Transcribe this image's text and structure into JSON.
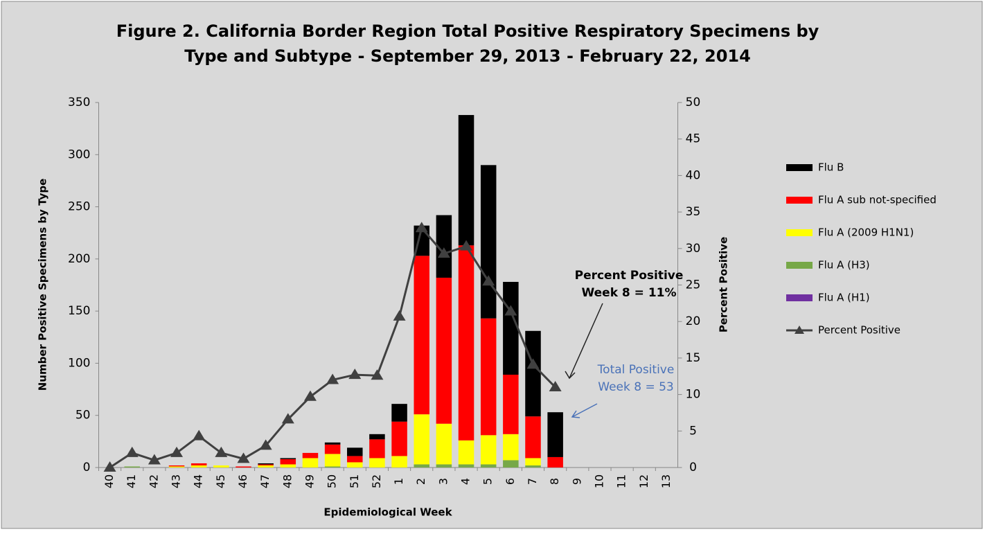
{
  "chart_data": {
    "type": "bar",
    "stacked": true,
    "title": [
      "Figure 2. California Border Region Total Positive Respiratory Specimens by",
      "Type and Subtype - September 29, 2013 - February 22, 2014"
    ],
    "x_label": "Epidemiological Week",
    "y_label": "Number Positive Specimens by Type",
    "y2_label": "Percent Positive",
    "categories": [
      "40",
      "41",
      "42",
      "43",
      "44",
      "45",
      "46",
      "47",
      "48",
      "49",
      "50",
      "51",
      "52",
      "1",
      "2",
      "3",
      "4",
      "5",
      "6",
      "7",
      "8",
      "9",
      "10",
      "11",
      "12",
      "13"
    ],
    "series": [
      {
        "name": "Flu A (H1)",
        "color": "#7030a0",
        "values": [
          0,
          0,
          0,
          0,
          0,
          0,
          0,
          0,
          0,
          0,
          0,
          0,
          0,
          0,
          0,
          0,
          0,
          0,
          0,
          0,
          0,
          null,
          null,
          null,
          null,
          null
        ]
      },
      {
        "name": "Flu A (H3)",
        "color": "#77a848",
        "values": [
          0,
          1,
          0,
          0,
          0,
          0,
          0,
          0,
          0,
          0,
          1,
          0,
          0,
          0,
          3,
          3,
          3,
          3,
          7,
          2,
          0,
          null,
          null,
          null,
          null,
          null
        ]
      },
      {
        "name": "Flu A (2009 H1N1)",
        "color": "#ffff00",
        "values": [
          0,
          0,
          0,
          1,
          2,
          2,
          0,
          2,
          3,
          9,
          12,
          5,
          9,
          11,
          48,
          39,
          23,
          28,
          25,
          7,
          0,
          null,
          null,
          null,
          null,
          null
        ]
      },
      {
        "name": "Flu A sub not-specified",
        "color": "#ff0000",
        "values": [
          0,
          0,
          0,
          1,
          2,
          0,
          1,
          1,
          5,
          5,
          9,
          6,
          18,
          33,
          152,
          140,
          187,
          112,
          57,
          40,
          10,
          null,
          null,
          null,
          null,
          null
        ]
      },
      {
        "name": "Flu B",
        "color": "#000000",
        "values": [
          0,
          0,
          0,
          0,
          0,
          0,
          0,
          1,
          1,
          0,
          2,
          8,
          5,
          17,
          29,
          60,
          125,
          147,
          89,
          82,
          43,
          null,
          null,
          null,
          null,
          null
        ]
      },
      {
        "name": "Percent Positive",
        "color": "#404040",
        "axis": "y2",
        "values": [
          0,
          2,
          1,
          2,
          4.3,
          2,
          1.2,
          3,
          6.6,
          9.7,
          12,
          12.7,
          12.6,
          20.7,
          32.8,
          29.3,
          30.3,
          25.5,
          21.4,
          14.1,
          11,
          null,
          null,
          null,
          null,
          null
        ]
      }
    ],
    "ylim": [
      0,
      350
    ],
    "yticks": [
      0,
      50,
      100,
      150,
      200,
      250,
      300,
      350
    ],
    "y2lim": [
      0,
      50
    ],
    "y2ticks": [
      0,
      5,
      10,
      15,
      20,
      25,
      30,
      35,
      40,
      45,
      50
    ],
    "legend": "right",
    "annotations": [
      {
        "lines": [
          "Percent Positive",
          "Week 8 = 11%"
        ],
        "color": "#000000"
      },
      {
        "lines": [
          "Total Positive",
          "Week 8 = 53"
        ],
        "color": "#4a72b8"
      }
    ]
  }
}
